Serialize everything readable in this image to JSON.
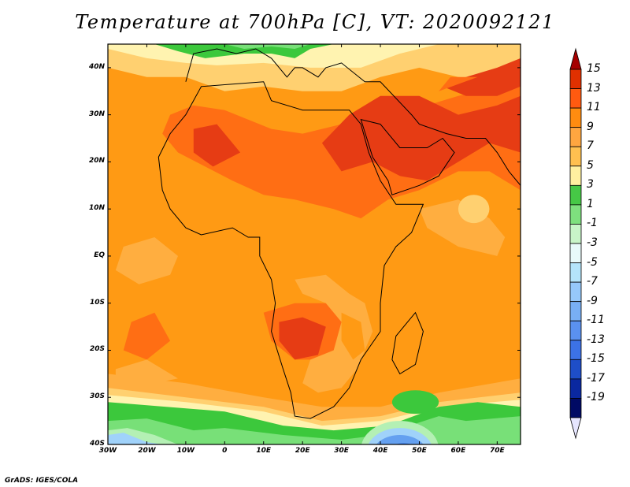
{
  "title": "Temperature at 700hPa [C], VT: 2020092121",
  "credit": "GrADS: IGES/COLA",
  "axes": {
    "lat_ticks": [
      40,
      30,
      20,
      10,
      0,
      -10,
      -20,
      -30,
      -40
    ],
    "lat_labels": [
      "40N",
      "30N",
      "20N",
      "10N",
      "EQ",
      "10S",
      "20S",
      "30S",
      "40S"
    ],
    "lon_ticks": [
      -30,
      -20,
      -10,
      0,
      10,
      20,
      30,
      40,
      50,
      60,
      70
    ],
    "lon_labels": [
      "30W",
      "20W",
      "10W",
      "0",
      "10E",
      "20E",
      "30E",
      "40E",
      "50E",
      "60E",
      "70E"
    ],
    "lon_range": [
      -30,
      76
    ],
    "lat_range": [
      -40,
      45
    ]
  },
  "colorbar": {
    "labels": [
      "15",
      "13",
      "11",
      "9",
      "7",
      "5",
      "3",
      "1",
      "-1",
      "-3",
      "-5",
      "-7",
      "-9",
      "-11",
      "-13",
      "-15",
      "-17",
      "-19"
    ],
    "colors": [
      "#a50000",
      "#e03000",
      "#ff5a10",
      "#ff8c10",
      "#ffa640",
      "#ffc050",
      "#fff0a0",
      "#46c846",
      "#7ee07e",
      "#c8f5c8",
      "#e8fafa",
      "#b4e4fa",
      "#96c8fa",
      "#78aff5",
      "#5a91f0",
      "#3c72e6",
      "#1e4ec8",
      "#0a28a0",
      "#000a64",
      "#e6e6ff"
    ]
  },
  "field_colors": {
    "t13": "#e63c14",
    "t11": "#ff6e14",
    "t9": "#ff9a14",
    "t7": "#ffae40",
    "t5": "#ffd070",
    "t3": "#fff3b0",
    "t1": "#3cc83c",
    "tm1": "#78e078",
    "tm3": "#b4f0b4",
    "tm5": "#a0d2fa",
    "tm7": "#64a0f0",
    "tm9": "#3c7ce6",
    "tm11": "#2058d2"
  }
}
